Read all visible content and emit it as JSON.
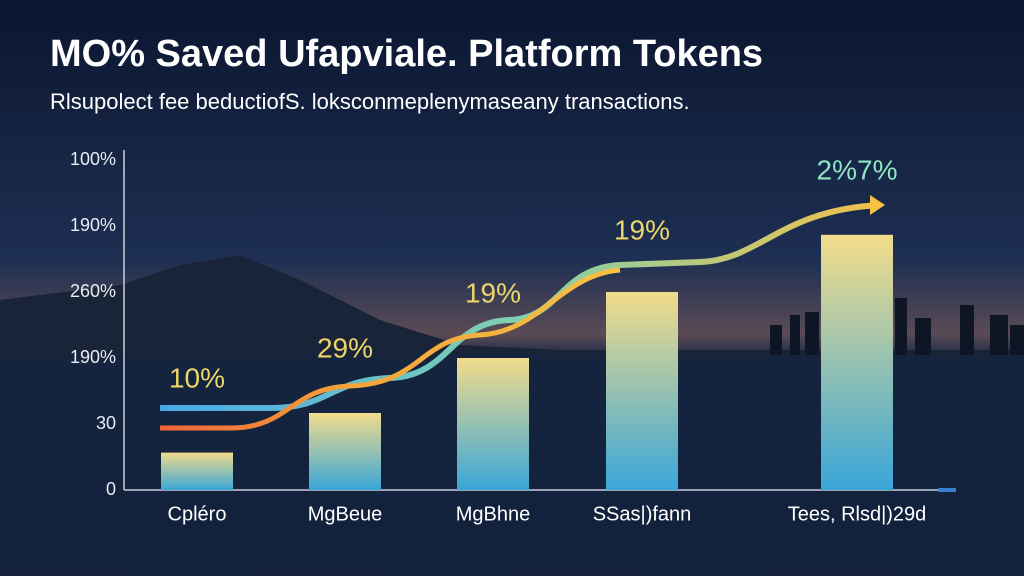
{
  "chart_data": {
    "type": "bar",
    "title": "MO% Saved Ufapviale. Platform Tokens",
    "subtitle": "Rlsupolect fee beductiofS. loksconmeplenymaseany transactions.",
    "categories": [
      "Cpléro",
      "MgBeue",
      "MgBhne",
      "SSas|)fann",
      "Tees, Rlsd|)29d"
    ],
    "values": [
      17,
      35,
      60,
      90,
      116
    ],
    "annotations": [
      "10%",
      "29%",
      "19%",
      "19%",
      "2%7%"
    ],
    "ylim": [
      0,
      150
    ],
    "yticks": [
      0,
      30,
      {
        "value": 60,
        "label": "190%"
      },
      {
        "value": 90,
        "label": "260%"
      },
      {
        "value": 120,
        "label": "190%"
      },
      {
        "value": 150,
        "label": "100%"
      }
    ]
  }
}
